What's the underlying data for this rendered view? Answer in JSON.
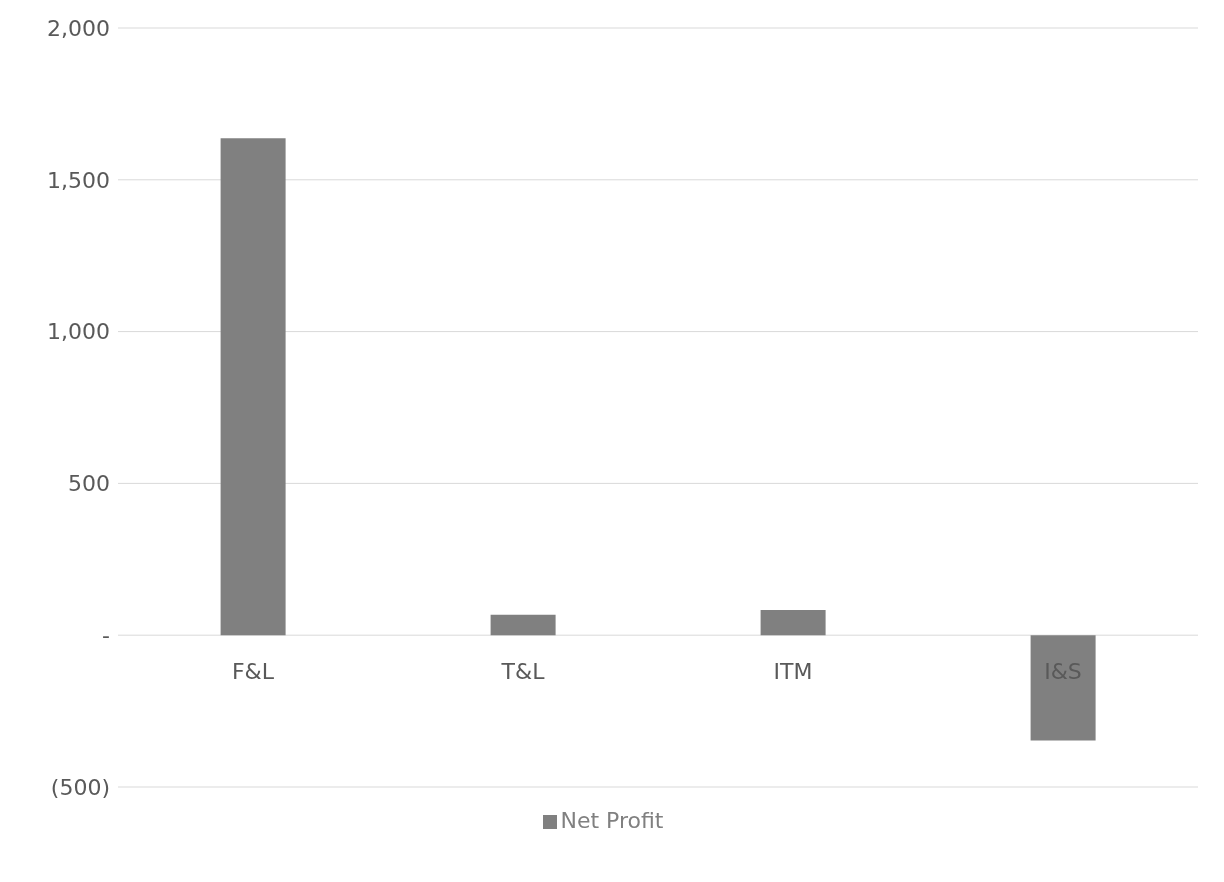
{
  "chart_data": {
    "type": "bar",
    "categories": [
      "F&L",
      "T&L",
      "ITM",
      "I&S"
    ],
    "series": [
      {
        "name": "Net Profit",
        "color": "#808080",
        "values": [
          1637,
          67,
          83,
          -347
        ]
      }
    ],
    "ylim": [
      -500,
      2000
    ],
    "yticks": [
      {
        "value": -500,
        "label": "(500)"
      },
      {
        "value": 0,
        "label": "-"
      },
      500,
      {
        "value": 1000,
        "label": "1,000"
      },
      {
        "value": 1500,
        "label": "1,500"
      },
      {
        "value": 2000,
        "label": "2,000"
      }
    ],
    "grid": "y",
    "legend": "bottom"
  }
}
